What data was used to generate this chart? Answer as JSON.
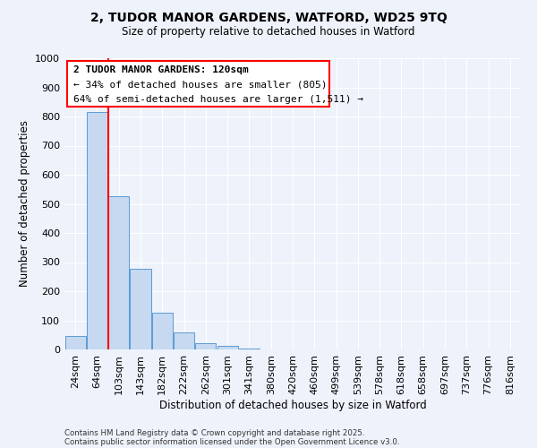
{
  "title1": "2, TUDOR MANOR GARDENS, WATFORD, WD25 9TQ",
  "title2": "Size of property relative to detached houses in Watford",
  "xlabel": "Distribution of detached houses by size in Watford",
  "ylabel": "Number of detached properties",
  "bar_labels": [
    "24sqm",
    "64sqm",
    "103sqm",
    "143sqm",
    "182sqm",
    "222sqm",
    "262sqm",
    "301sqm",
    "341sqm",
    "380sqm",
    "420sqm",
    "460sqm",
    "499sqm",
    "539sqm",
    "578sqm",
    "618sqm",
    "658sqm",
    "697sqm",
    "737sqm",
    "776sqm",
    "816sqm"
  ],
  "bar_values": [
    46,
    815,
    527,
    278,
    127,
    57,
    22,
    11,
    3,
    0,
    0,
    0,
    0,
    0,
    0,
    0,
    0,
    0,
    0,
    0,
    0
  ],
  "bar_color": "#c6d9f0",
  "bar_edge_color": "#5b9bd5",
  "background_color": "#eef2fb",
  "grid_color": "#ffffff",
  "ylim": [
    0,
    1000
  ],
  "yticks": [
    0,
    100,
    200,
    300,
    400,
    500,
    600,
    700,
    800,
    900,
    1000
  ],
  "red_line_x": 1.5,
  "annotation_title": "2 TUDOR MANOR GARDENS: 120sqm",
  "annotation_line1": "← 34% of detached houses are smaller (805)",
  "annotation_line2": "64% of semi-detached houses are larger (1,511) →",
  "footer1": "Contains HM Land Registry data © Crown copyright and database right 2025.",
  "footer2": "Contains public sector information licensed under the Open Government Licence v3.0."
}
